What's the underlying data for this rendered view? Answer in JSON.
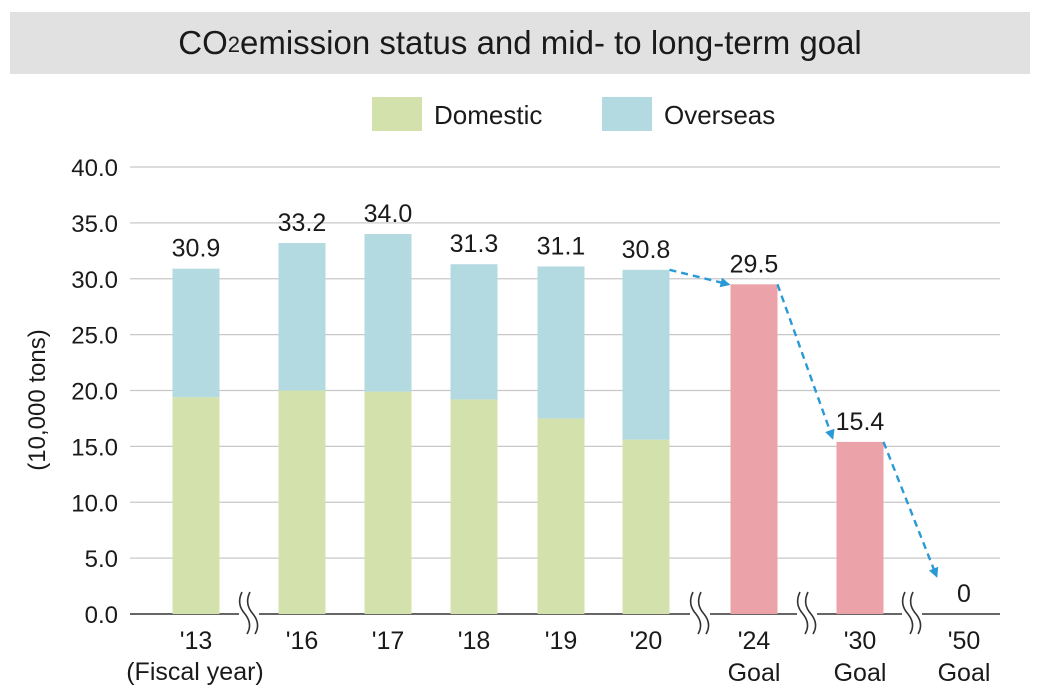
{
  "chart_data": {
    "type": "bar",
    "stacked": true,
    "title_main": "CO",
    "title_sub": "2",
    "title_rest": " emission status and mid- to long-term goal",
    "ylabel": "(10,000 tons)",
    "xlabel": "(Fiscal year)",
    "ylim": [
      0,
      40
    ],
    "yticks": [
      "0.0",
      "5.0",
      "10.0",
      "15.0",
      "20.0",
      "25.0",
      "30.0",
      "35.0",
      "40.0"
    ],
    "ytick_values": [
      0,
      5,
      10,
      15,
      20,
      25,
      30,
      35,
      40
    ],
    "grid": true,
    "legend": [
      {
        "name": "Domestic",
        "color": "#d3e1ac"
      },
      {
        "name": "Overseas",
        "color": "#b3dae0"
      }
    ],
    "goal_color": "#eba3a9",
    "arrow_color": "#2a9ad6",
    "categories": [
      {
        "label": "'13",
        "sub": "",
        "domestic": 19.4,
        "overseas": 11.5,
        "total_label": "30.9",
        "goal": false,
        "break_after": true
      },
      {
        "label": "'16",
        "sub": "",
        "domestic": 20.0,
        "overseas": 13.2,
        "total_label": "33.2",
        "goal": false,
        "break_after": false
      },
      {
        "label": "'17",
        "sub": "",
        "domestic": 19.9,
        "overseas": 14.1,
        "total_label": "34.0",
        "goal": false,
        "break_after": false
      },
      {
        "label": "'18",
        "sub": "",
        "domestic": 19.2,
        "overseas": 12.1,
        "total_label": "31.3",
        "goal": false,
        "break_after": false
      },
      {
        "label": "'19",
        "sub": "",
        "domestic": 17.5,
        "overseas": 13.6,
        "total_label": "31.1",
        "goal": false,
        "break_after": false
      },
      {
        "label": "'20",
        "sub": "",
        "domestic": 15.6,
        "overseas": 15.2,
        "total_label": "30.8",
        "goal": false,
        "break_after": true
      },
      {
        "label": "'24",
        "sub": "Goal",
        "goal_value": 29.5,
        "total_label": "29.5",
        "goal": true,
        "break_after": true
      },
      {
        "label": "'30",
        "sub": "Goal",
        "goal_value": 15.4,
        "total_label": "15.4",
        "goal": true,
        "break_after": true
      },
      {
        "label": "'50",
        "sub": "Goal",
        "goal_value": 0,
        "total_label": "0",
        "goal": true,
        "break_after": false
      }
    ],
    "legend_placement": "top-center"
  }
}
